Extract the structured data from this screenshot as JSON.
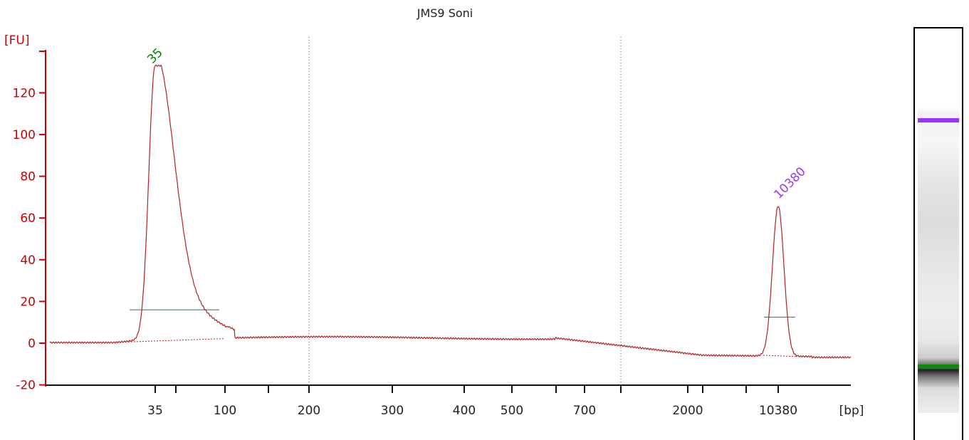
{
  "chart_data": {
    "type": "line",
    "title": "JMS9 Soni",
    "ylabel": "[FU]",
    "xlabel": "[bp]",
    "ylim": [
      -20,
      140
    ],
    "yticks": [
      -20,
      0,
      20,
      40,
      60,
      80,
      100,
      120
    ],
    "xtick_labels": [
      "35",
      "100",
      "200",
      "300",
      "400",
      "500",
      "700",
      "2000",
      "10380"
    ],
    "series": [
      {
        "x": [
          "35",
          "100",
          "200",
          "300",
          "400",
          "500",
          "700",
          "2000",
          "10380"
        ],
        "values": [
          133,
          2,
          2,
          3,
          3,
          3,
          2,
          -5,
          66
        ]
      }
    ],
    "peaks": [
      {
        "label": "35",
        "value": 133,
        "color": "#008000"
      },
      {
        "label": "10380",
        "value": 66,
        "color": "#9933ff"
      }
    ],
    "colors": {
      "trace": "#b22222",
      "axis": "#cc0000",
      "marker_low": "#008000",
      "marker_high": "#9933ff",
      "integration_line": "#2f6f5f"
    }
  }
}
